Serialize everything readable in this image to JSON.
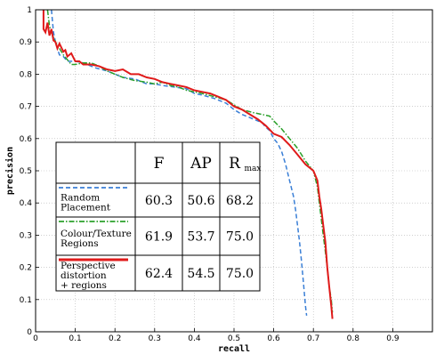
{
  "chart_data": {
    "type": "line",
    "title": "",
    "xlabel": "recall",
    "ylabel": "precision",
    "xlim": [
      0,
      1
    ],
    "ylim": [
      0,
      1
    ],
    "grid": true,
    "x_ticks": [
      "0",
      "0.1",
      "0.2",
      "0.3",
      "0.4",
      "0.5",
      "0.6",
      "0.7",
      "0.8",
      "0.9"
    ],
    "y_ticks": [
      "0",
      "0.1",
      "0.2",
      "0.3",
      "0.4",
      "0.5",
      "0.6",
      "0.7",
      "0.8",
      "0.9",
      "1"
    ],
    "series": [
      {
        "name": "Random Placement",
        "color": "#3a7fd6",
        "dash": "dashed",
        "points": [
          [
            0.04,
            1.0
          ],
          [
            0.045,
            0.93
          ],
          [
            0.05,
            0.9
          ],
          [
            0.055,
            0.88
          ],
          [
            0.06,
            0.86
          ],
          [
            0.07,
            0.855
          ],
          [
            0.08,
            0.84
          ],
          [
            0.1,
            0.84
          ],
          [
            0.12,
            0.835
          ],
          [
            0.15,
            0.82
          ],
          [
            0.18,
            0.81
          ],
          [
            0.2,
            0.8
          ],
          [
            0.22,
            0.79
          ],
          [
            0.25,
            0.785
          ],
          [
            0.28,
            0.77
          ],
          [
            0.3,
            0.77
          ],
          [
            0.32,
            0.765
          ],
          [
            0.35,
            0.76
          ],
          [
            0.38,
            0.755
          ],
          [
            0.4,
            0.74
          ],
          [
            0.42,
            0.735
          ],
          [
            0.45,
            0.725
          ],
          [
            0.48,
            0.71
          ],
          [
            0.5,
            0.69
          ],
          [
            0.52,
            0.675
          ],
          [
            0.55,
            0.66
          ],
          [
            0.57,
            0.65
          ],
          [
            0.58,
            0.635
          ],
          [
            0.59,
            0.625
          ],
          [
            0.6,
            0.6
          ],
          [
            0.61,
            0.585
          ],
          [
            0.62,
            0.56
          ],
          [
            0.63,
            0.52
          ],
          [
            0.64,
            0.47
          ],
          [
            0.65,
            0.42
          ],
          [
            0.655,
            0.38
          ],
          [
            0.66,
            0.33
          ],
          [
            0.665,
            0.28
          ],
          [
            0.67,
            0.22
          ],
          [
            0.675,
            0.15
          ],
          [
            0.68,
            0.08
          ],
          [
            0.683,
            0.05
          ]
        ]
      },
      {
        "name": "Colour/Texture Regions",
        "color": "#2aa02a",
        "dash": "dashdot",
        "points": [
          [
            0.03,
            1.0
          ],
          [
            0.035,
            0.95
          ],
          [
            0.04,
            0.93
          ],
          [
            0.05,
            0.9
          ],
          [
            0.06,
            0.88
          ],
          [
            0.07,
            0.86
          ],
          [
            0.08,
            0.845
          ],
          [
            0.09,
            0.83
          ],
          [
            0.1,
            0.83
          ],
          [
            0.12,
            0.835
          ],
          [
            0.14,
            0.835
          ],
          [
            0.16,
            0.825
          ],
          [
            0.18,
            0.81
          ],
          [
            0.2,
            0.8
          ],
          [
            0.22,
            0.79
          ],
          [
            0.25,
            0.78
          ],
          [
            0.28,
            0.775
          ],
          [
            0.3,
            0.77
          ],
          [
            0.32,
            0.775
          ],
          [
            0.34,
            0.765
          ],
          [
            0.36,
            0.76
          ],
          [
            0.38,
            0.75
          ],
          [
            0.4,
            0.745
          ],
          [
            0.42,
            0.74
          ],
          [
            0.45,
            0.73
          ],
          [
            0.48,
            0.72
          ],
          [
            0.5,
            0.705
          ],
          [
            0.52,
            0.69
          ],
          [
            0.55,
            0.68
          ],
          [
            0.57,
            0.675
          ],
          [
            0.59,
            0.67
          ],
          [
            0.6,
            0.655
          ],
          [
            0.62,
            0.63
          ],
          [
            0.64,
            0.6
          ],
          [
            0.66,
            0.57
          ],
          [
            0.68,
            0.53
          ],
          [
            0.7,
            0.5
          ],
          [
            0.71,
            0.45
          ],
          [
            0.715,
            0.4
          ],
          [
            0.72,
            0.35
          ],
          [
            0.725,
            0.3
          ],
          [
            0.73,
            0.25
          ],
          [
            0.735,
            0.2
          ],
          [
            0.74,
            0.14
          ],
          [
            0.745,
            0.1
          ],
          [
            0.748,
            0.06
          ]
        ]
      },
      {
        "name": "Perspective distortion + regions",
        "color": "#e01a1a",
        "dash": "solid",
        "points": [
          [
            0.02,
            1.0
          ],
          [
            0.02,
            0.94
          ],
          [
            0.025,
            0.93
          ],
          [
            0.03,
            0.96
          ],
          [
            0.035,
            0.92
          ],
          [
            0.04,
            0.94
          ],
          [
            0.045,
            0.905
          ],
          [
            0.05,
            0.9
          ],
          [
            0.055,
            0.88
          ],
          [
            0.06,
            0.895
          ],
          [
            0.07,
            0.87
          ],
          [
            0.075,
            0.875
          ],
          [
            0.08,
            0.855
          ],
          [
            0.09,
            0.865
          ],
          [
            0.1,
            0.84
          ],
          [
            0.11,
            0.84
          ],
          [
            0.12,
            0.83
          ],
          [
            0.14,
            0.83
          ],
          [
            0.16,
            0.825
          ],
          [
            0.18,
            0.815
          ],
          [
            0.2,
            0.81
          ],
          [
            0.22,
            0.815
          ],
          [
            0.24,
            0.8
          ],
          [
            0.26,
            0.8
          ],
          [
            0.28,
            0.79
          ],
          [
            0.3,
            0.785
          ],
          [
            0.32,
            0.775
          ],
          [
            0.34,
            0.77
          ],
          [
            0.36,
            0.765
          ],
          [
            0.38,
            0.76
          ],
          [
            0.4,
            0.75
          ],
          [
            0.42,
            0.745
          ],
          [
            0.44,
            0.74
          ],
          [
            0.46,
            0.73
          ],
          [
            0.48,
            0.72
          ],
          [
            0.5,
            0.7
          ],
          [
            0.52,
            0.69
          ],
          [
            0.54,
            0.675
          ],
          [
            0.56,
            0.66
          ],
          [
            0.58,
            0.64
          ],
          [
            0.6,
            0.615
          ],
          [
            0.62,
            0.605
          ],
          [
            0.64,
            0.58
          ],
          [
            0.66,
            0.55
          ],
          [
            0.68,
            0.52
          ],
          [
            0.7,
            0.5
          ],
          [
            0.71,
            0.47
          ],
          [
            0.715,
            0.42
          ],
          [
            0.72,
            0.38
          ],
          [
            0.725,
            0.33
          ],
          [
            0.73,
            0.28
          ],
          [
            0.735,
            0.2
          ],
          [
            0.74,
            0.14
          ],
          [
            0.745,
            0.08
          ],
          [
            0.748,
            0.04
          ]
        ]
      }
    ],
    "table": {
      "headers": [
        "F",
        "AP",
        "R"
      ],
      "r_subscript": "max",
      "rows": [
        {
          "label": [
            "Random",
            "Placement"
          ],
          "values": [
            "60.3",
            "50.6",
            "68.2"
          ]
        },
        {
          "label": [
            "Colour/Texture",
            "Regions"
          ],
          "values": [
            "61.9",
            "53.7",
            "75.0"
          ]
        },
        {
          "label": [
            "Perspective",
            "distortion",
            "+ regions"
          ],
          "values": [
            "62.4",
            "54.5",
            "75.0"
          ]
        }
      ]
    }
  }
}
